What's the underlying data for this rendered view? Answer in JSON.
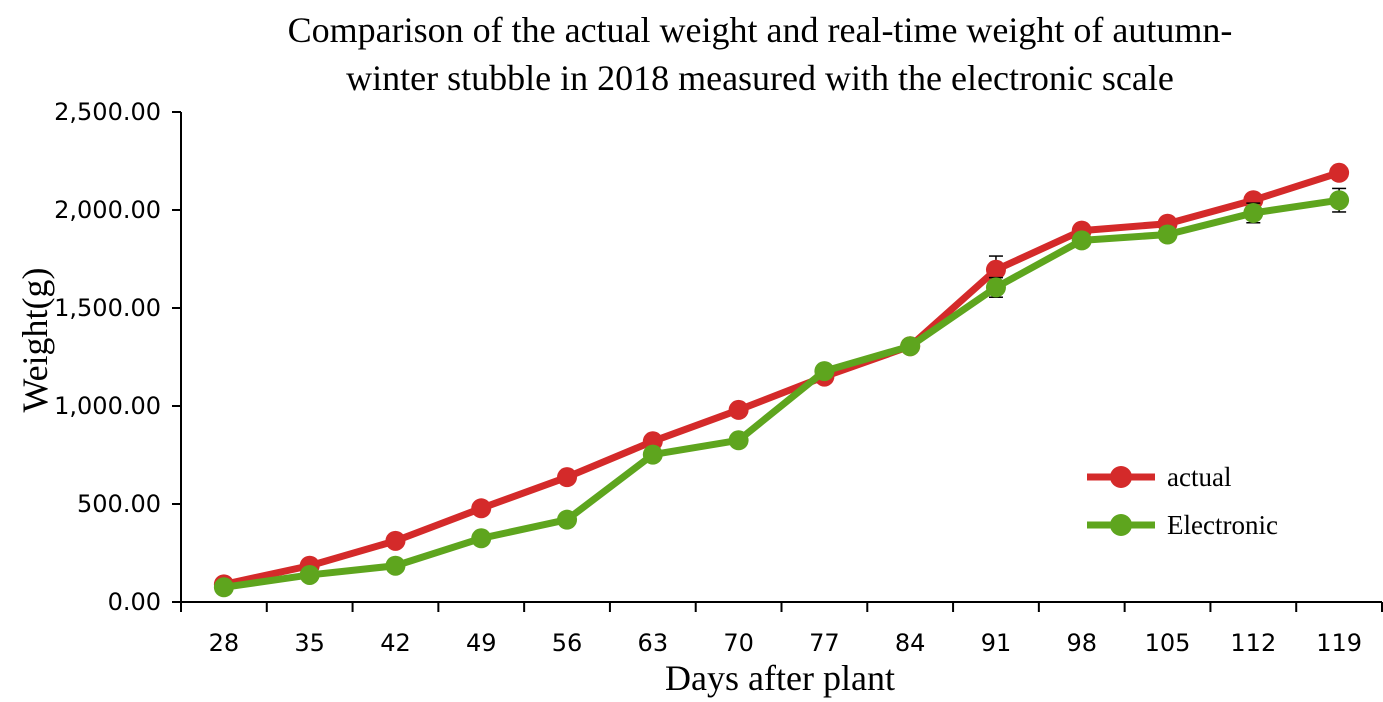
{
  "chart_data": {
    "type": "line",
    "title": [
      "Comparison of the actual weight and real-time weight of autumn-",
      "winter stubble in 2018 measured with the electronic scale"
    ],
    "xlabel": "Days after plant",
    "ylabel": "Weight(g)",
    "categories": [
      "28",
      "35",
      "42",
      "49",
      "56",
      "63",
      "70",
      "77",
      "84",
      "91",
      "98",
      "105",
      "112",
      "119"
    ],
    "ylim": [
      0,
      2500
    ],
    "yticks": [
      0,
      500,
      1000,
      1500,
      2000,
      2500
    ],
    "ytick_labels": [
      "0.00",
      "500.00",
      "1,000.00",
      "1,500.00",
      "2,000.00",
      "2,500.00"
    ],
    "grid": false,
    "legend_position": "bottom-right",
    "series": [
      {
        "name": "actual",
        "color": "#d42a2a",
        "values": [
          90,
          185,
          312,
          478,
          637,
          820,
          980,
          1150,
          1305,
          1695,
          1895,
          1930,
          2050,
          2190
        ],
        "error": [
          0,
          0,
          0,
          0,
          0,
          0,
          0,
          0,
          0,
          70,
          0,
          0,
          0,
          0
        ]
      },
      {
        "name": "Electronic",
        "color": "#5ea51e",
        "values": [
          75,
          138,
          185,
          325,
          420,
          752,
          825,
          1178,
          1305,
          1605,
          1845,
          1875,
          1985,
          2050
        ],
        "error": [
          0,
          0,
          0,
          0,
          0,
          0,
          0,
          0,
          0,
          50,
          0,
          0,
          50,
          60
        ]
      }
    ]
  }
}
